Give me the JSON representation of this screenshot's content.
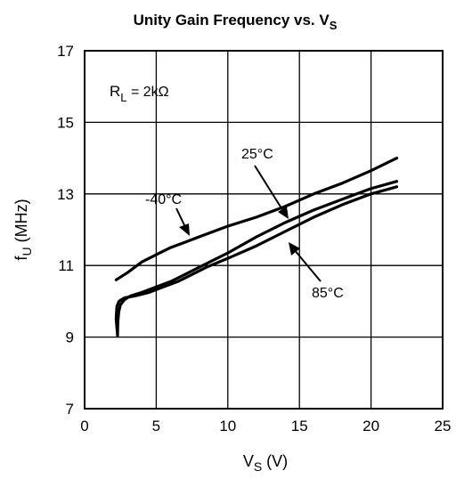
{
  "chart_data": {
    "type": "line",
    "title": "Unity Gain Frequency vs. V",
    "title_sub": "S",
    "xlabel_main": "V",
    "xlabel_sub": "S",
    "xlabel_unit": " (V)",
    "ylabel_main": "f",
    "ylabel_sub": "U",
    "ylabel_unit": " (MHz)",
    "xlim": [
      0,
      25
    ],
    "ylim": [
      7,
      17
    ],
    "xticks": [
      "0",
      "5",
      "10",
      "15",
      "20",
      "25"
    ],
    "yticks": [
      "7",
      "9",
      "11",
      "13",
      "15",
      "17"
    ],
    "grid": true,
    "condition_main": "R",
    "condition_sub": "L",
    "condition_value": " = 2kΩ",
    "series": [
      {
        "name": "-40°C",
        "x": [
          2.2,
          3.0,
          4.0,
          5.0,
          6.0,
          7.0,
          8.0,
          10.0,
          12.0,
          14.0,
          16.0,
          18.0,
          20.0,
          21.8
        ],
        "y": [
          10.6,
          10.8,
          11.1,
          11.3,
          11.5,
          11.65,
          11.8,
          12.1,
          12.35,
          12.65,
          13.0,
          13.3,
          13.65,
          14.0
        ]
      },
      {
        "name": "25°C",
        "x": [
          2.3,
          2.32,
          2.38,
          2.5,
          2.8,
          3.2,
          4.0,
          5.0,
          6.0,
          7.0,
          8.0,
          10.0,
          12.0,
          14.0,
          16.0,
          18.0,
          20.0,
          21.8
        ],
        "y": [
          9.05,
          9.4,
          9.7,
          9.9,
          10.05,
          10.15,
          10.25,
          10.4,
          10.55,
          10.75,
          10.95,
          11.35,
          11.8,
          12.2,
          12.55,
          12.85,
          13.15,
          13.35
        ]
      },
      {
        "name": "85°C",
        "x": [
          2.3,
          2.2,
          2.25,
          2.4,
          2.8,
          3.5,
          4.5,
          5.5,
          6.5,
          7.5,
          8.5,
          10.0,
          12.0,
          14.0,
          16.0,
          18.0,
          20.0,
          21.8
        ],
        "y": [
          9.05,
          9.5,
          9.85,
          10.0,
          10.1,
          10.15,
          10.25,
          10.4,
          10.55,
          10.75,
          10.95,
          11.2,
          11.55,
          11.95,
          12.35,
          12.7,
          13.0,
          13.2
        ]
      }
    ]
  },
  "annotations": [
    {
      "label": "-40°C"
    },
    {
      "label": "25°C"
    },
    {
      "label": "85°C"
    }
  ]
}
